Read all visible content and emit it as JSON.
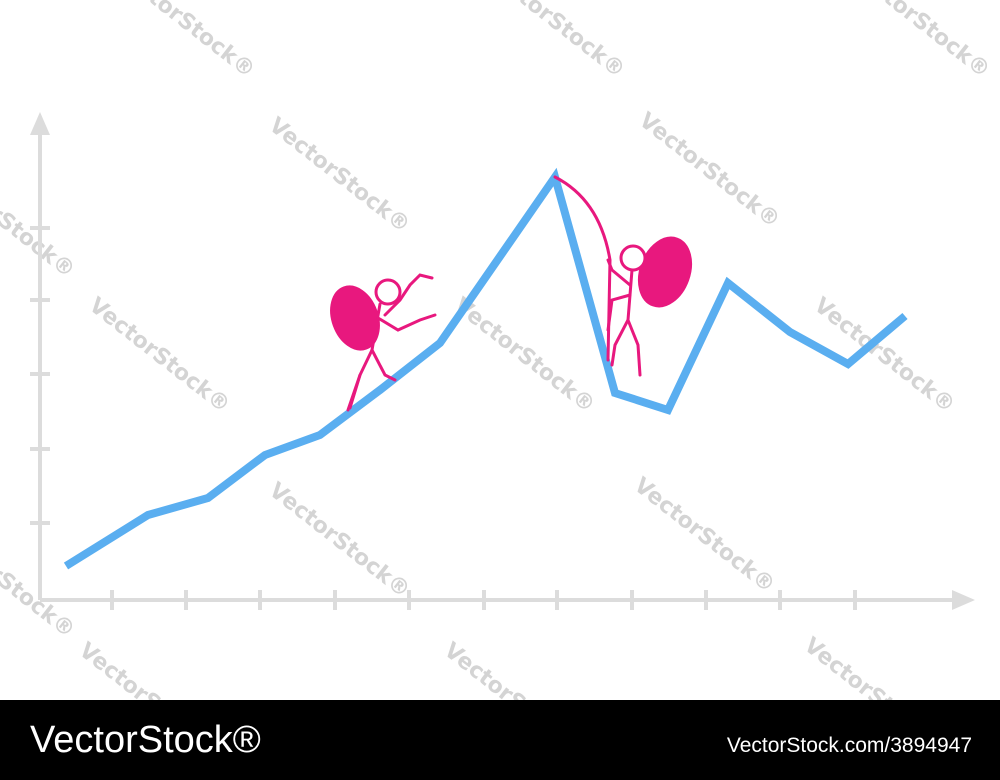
{
  "watermark": "VectorStock®",
  "footer": {
    "brand": "VectorStock®",
    "url": "VectorStock.com/3894947"
  }
}
